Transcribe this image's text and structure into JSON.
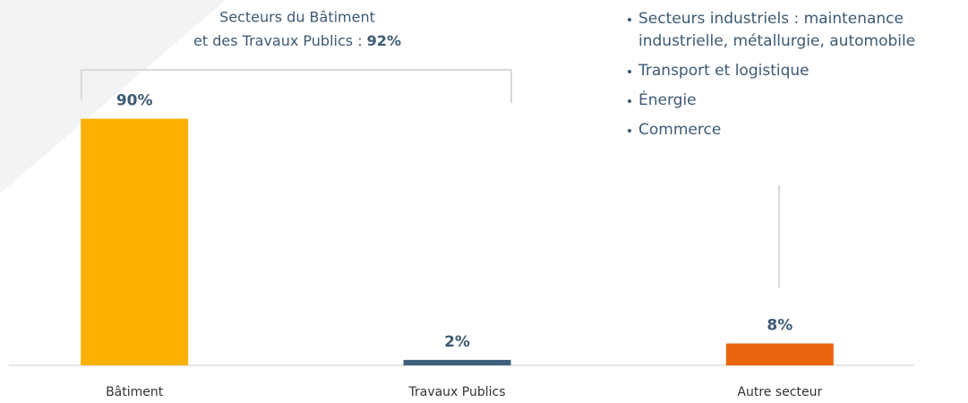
{
  "chart_data": {
    "type": "bar",
    "categories": [
      "Bâtiment",
      "Travaux Publics",
      "Autre secteur"
    ],
    "values": [
      90,
      2,
      8
    ],
    "value_labels": [
      "90%",
      "2%",
      "8%"
    ],
    "colors": [
      "#f9b000",
      "#3e5f7a",
      "#e8650e"
    ],
    "ylim": [
      0,
      100
    ],
    "annotation": {
      "line1": "Secteurs du Bâtiment",
      "line2": "et des Travaux Publics : ",
      "highlight": "92%"
    },
    "list": [
      [
        "Secteurs industriels : maintenance",
        "industrielle, métallurgie, automobile"
      ],
      [
        "Transport et logistique"
      ],
      [
        "Énergie"
      ],
      [
        "Commerce"
      ]
    ]
  }
}
